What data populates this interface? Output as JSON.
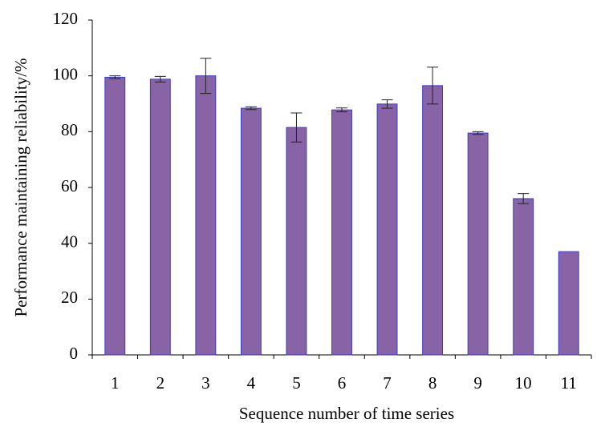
{
  "chart_data": {
    "type": "bar",
    "x_label": "Sequence number of time series",
    "y_label": "Performance maintaining reliability/%",
    "categories": [
      "1",
      "2",
      "3",
      "4",
      "5",
      "6",
      "7",
      "8",
      "9",
      "10",
      "11"
    ],
    "values": [
      99.5,
      98.8,
      100,
      88.4,
      81.5,
      87.8,
      89.9,
      96.5,
      79.5,
      56,
      37
    ],
    "errors": [
      0.5,
      1,
      6.3,
      0.5,
      5.2,
      0.7,
      1.5,
      6.6,
      0.5,
      1.8,
      null
    ],
    "color": "#8864a6",
    "ylim": [
      0,
      120
    ],
    "yticks": [
      0,
      20,
      40,
      60,
      80,
      100,
      120
    ]
  }
}
